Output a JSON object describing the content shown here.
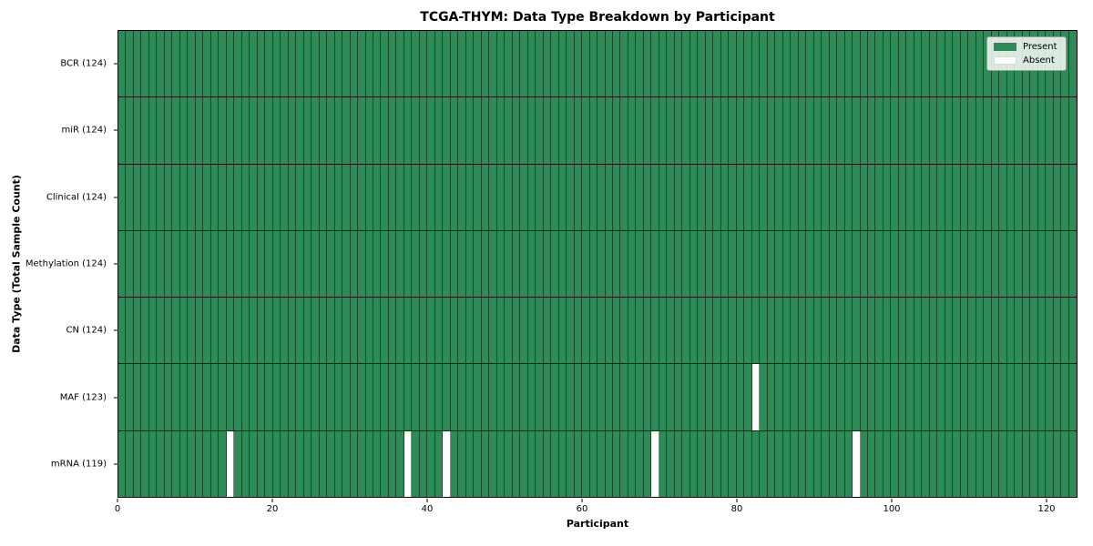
{
  "chart_data": {
    "type": "heatmap",
    "title": "TCGA-THYM: Data Type Breakdown by Participant",
    "xlabel": "Participant",
    "ylabel": "Data Type (Total Sample Count)",
    "n_participants": 124,
    "x_ticks": [
      0,
      20,
      40,
      60,
      80,
      100,
      120
    ],
    "x_range": [
      0,
      124
    ],
    "grid": true,
    "legend_position": "upper right",
    "legend": [
      {
        "label": "Present",
        "color": "#2e8b57"
      },
      {
        "label": "Absent",
        "color": "#ffffff"
      }
    ],
    "colors": {
      "present": "#2e8b57",
      "absent": "#ffffff",
      "cell_edge": "rgba(0,0,0,0.48)",
      "row_edge": "#141414"
    },
    "rows": [
      {
        "label": "BCR (124)",
        "data_type": "BCR",
        "total": 124,
        "absent_indices": []
      },
      {
        "label": "miR (124)",
        "data_type": "miR",
        "total": 124,
        "absent_indices": []
      },
      {
        "label": "Clinical (124)",
        "data_type": "Clinical",
        "total": 124,
        "absent_indices": []
      },
      {
        "label": "Methylation (124)",
        "data_type": "Methylation",
        "total": 124,
        "absent_indices": []
      },
      {
        "label": "CN (124)",
        "data_type": "CN",
        "total": 124,
        "absent_indices": []
      },
      {
        "label": "MAF (123)",
        "data_type": "MAF",
        "total": 123,
        "absent_indices": [
          82
        ]
      },
      {
        "label": "mRNA (119)",
        "data_type": "mRNA",
        "total": 119,
        "absent_indices": [
          14,
          37,
          42,
          69,
          95
        ]
      }
    ]
  }
}
